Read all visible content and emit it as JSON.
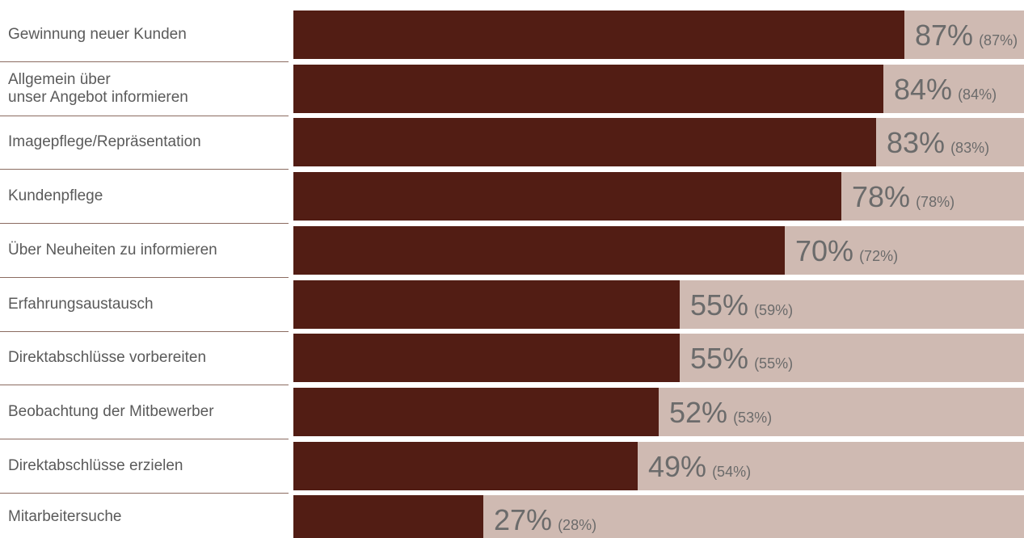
{
  "chart_data": {
    "type": "bar",
    "orientation": "horizontal",
    "ylim": [
      0,
      100
    ],
    "grid": false,
    "colors": {
      "bar": "#521d14",
      "track": "#cfbab2",
      "text": "#5a5a5a",
      "value_text": "#6b6b6b",
      "separator": "#8b6b60"
    },
    "categories": [
      "Gewinnung neuer Kunden",
      "Allgemein über\nunser Angebot informieren",
      "Imagepflege/Repräsentation",
      "Kundenpflege",
      "Über Neuheiten zu informieren",
      "Erfahrungsaustausch",
      "Direktabschlüsse vorbereiten",
      "Beobachtung der Mitbewerber",
      "Direktabschlüsse erzielen",
      "Mitarbeitersuche"
    ],
    "values": [
      87,
      84,
      83,
      78,
      70,
      55,
      55,
      52,
      49,
      27
    ],
    "value_labels": [
      "87%",
      "84%",
      "83%",
      "78%",
      "70%",
      "55%",
      "55%",
      "52%",
      "49%",
      "27%"
    ],
    "previous_values": [
      87,
      84,
      83,
      78,
      72,
      59,
      55,
      53,
      54,
      28
    ],
    "previous_labels": [
      "(87%)",
      "(84%)",
      "(83%)",
      "(78%)",
      "(72%)",
      "(59%)",
      "(55%)",
      "(53%)",
      "(54%)",
      "(28%)"
    ]
  }
}
